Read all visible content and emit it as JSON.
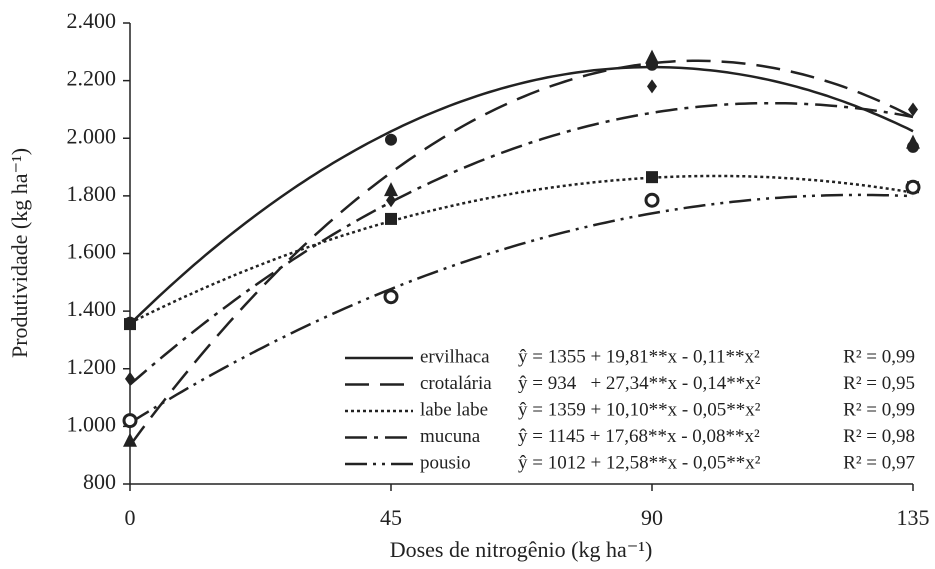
{
  "chart_data": {
    "type": "scatter",
    "x_label": "Doses de nitrogênio (kg ha⁻¹)",
    "y_label": "Produtividade (kg ha⁻¹)",
    "x": [
      0,
      45,
      90,
      135
    ],
    "xlim": [
      0,
      135
    ],
    "xticks": [
      0,
      45,
      90,
      135
    ],
    "ylim": [
      800,
      2400
    ],
    "yticks": [
      800,
      {
        "value": 1000,
        "label": "1.000"
      },
      {
        "value": 1200,
        "label": "1.200"
      },
      {
        "value": 1400,
        "label": "1.400"
      },
      {
        "value": 1600,
        "label": "1.600"
      },
      {
        "value": 1800,
        "label": "1.800"
      },
      {
        "value": 2000,
        "label": "2.000"
      },
      {
        "value": 2200,
        "label": "2.200"
      },
      {
        "value": 2400,
        "label": "2.400"
      }
    ],
    "series": [
      {
        "name": "ervilhaca",
        "color": "#222222",
        "marker": "circle",
        "dash": "none",
        "values": [
          1360,
          1995,
          2255,
          1970
        ],
        "equation": "ŷ = 1355 + 19,81**x - 0,11**x²",
        "r2": "R² = 0,99",
        "fit": [
          1355,
          19.81,
          -0.11
        ]
      },
      {
        "name": "crotalária",
        "color": "#222222",
        "marker": "triangle",
        "dash": "24,11",
        "values": [
          950,
          1820,
          2280,
          1985
        ],
        "equation": "ŷ = 934   + 27,34**x - 0,14**x²",
        "r2": "R² = 0,95",
        "fit": [
          934,
          27.34,
          -0.14
        ]
      },
      {
        "name": "labe labe",
        "color": "#222222",
        "marker": "square",
        "dash": "3,3",
        "values": [
          1355,
          1720,
          1865,
          1830
        ],
        "equation": "ŷ = 1359 + 10,10**x - 0,05**x²",
        "r2": "R² = 0,99",
        "fit": [
          1359,
          10.1,
          -0.05
        ]
      },
      {
        "name": "mucuna",
        "color": "#222222",
        "marker": "diamond",
        "dash": "22,7,4,7",
        "values": [
          1165,
          1785,
          2180,
          2100
        ],
        "equation": "ŷ = 1145 + 17,68**x - 0,08**x²",
        "r2": "R² = 0,98",
        "fit": [
          1145,
          17.68,
          -0.08
        ]
      },
      {
        "name": "pousio",
        "color": "#222222",
        "marker": "open-circle",
        "dash": "22,6,3,6,3,6",
        "values": [
          1020,
          1450,
          1785,
          1830
        ],
        "equation": "ŷ = 1012 + 12,58**x - 0,05**x²",
        "r2": "R² = 0,97",
        "fit": [
          1012,
          12.58,
          -0.05
        ]
      }
    ]
  }
}
